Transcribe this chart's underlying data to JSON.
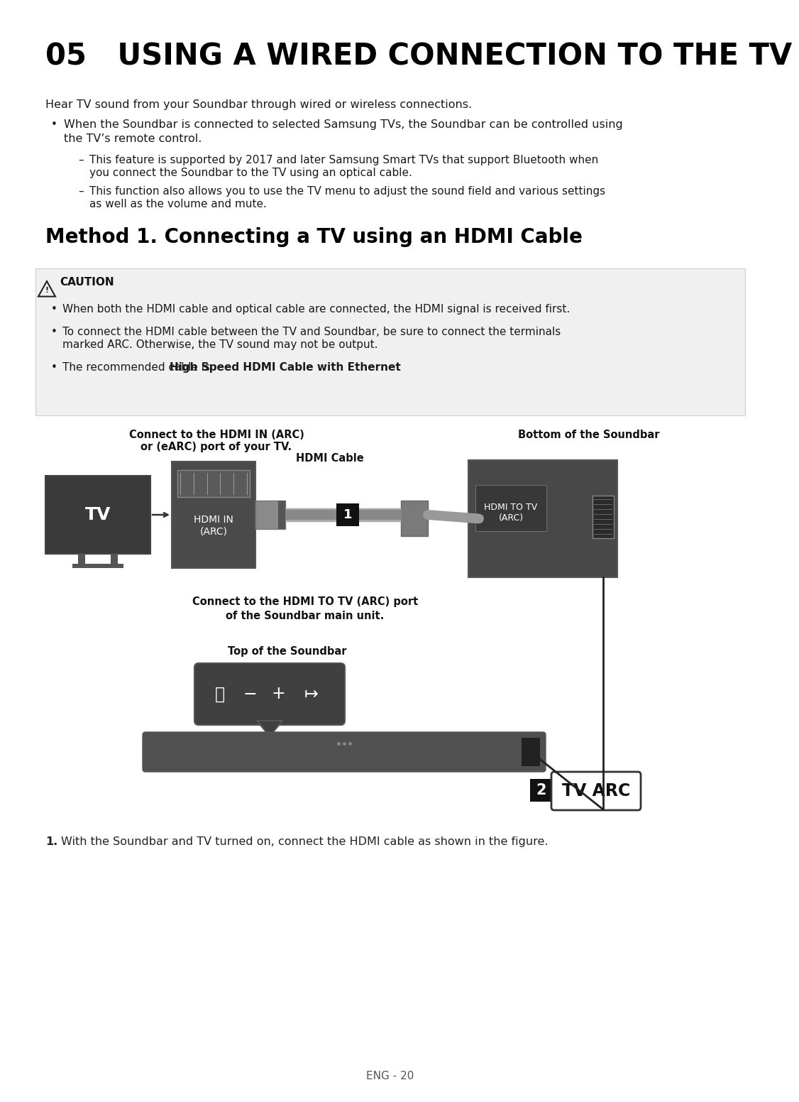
{
  "title": "05   USING A WIRED CONNECTION TO THE TV",
  "bg_color": "#ffffff",
  "title_color": "#000000",
  "intro_text": "Hear TV sound from your Soundbar through wired or wireless connections.",
  "bullet1_line1": "When the Soundbar is connected to selected Samsung TVs, the Soundbar can be controlled using",
  "bullet1_line2": "the TV’s remote control.",
  "sub1_line1": "This feature is supported by 2017 and later Samsung Smart TVs that support Bluetooth when",
  "sub1_line2": "you connect the Soundbar to the TV using an optical cable.",
  "sub2_line1": "This function also allows you to use the TV menu to adjust the sound field and various settings",
  "sub2_line2": "as well as the volume and mute.",
  "method_title": "Method 1. Connecting a TV using an HDMI Cable",
  "caution_header": "CAUTION",
  "caution1": "When both the HDMI cable and optical cable are connected, the HDMI signal is received first.",
  "caution2_line1": "To connect the HDMI cable between the TV and Soundbar, be sure to connect the terminals",
  "caution2_line2": "marked ARC. Otherwise, the TV sound may not be output.",
  "caution3_plain": "The recommended cable is ",
  "caution3_bold": "High Speed HDMI Cable with Ethernet",
  "caution3_end": ".",
  "label_arc_line1": "Connect to the HDMI IN (ARC)",
  "label_arc_line2": "or (eARC) port of your TV.",
  "label_hdmi": "HDMI Cable",
  "label_bottom": "Bottom of the Soundbar",
  "label_connect_line1": "Connect to the HDMI TO TV (ARC) port",
  "label_connect_line2": "of the Soundbar main unit.",
  "label_top_soundbar": "Top of the Soundbar",
  "tv_label": "TV",
  "hdmi_in_label": "HDMI IN\n(ARC)",
  "hdmi_to_tv_label": "HDMI TO TV\n(ARC)",
  "step1_text": "With the Soundbar and TV turned on, connect the HDMI cable as shown in the figure.",
  "footer": "ENG - 20",
  "caution_bg": "#f0f0f0",
  "tv_arc_label": "TV ARC"
}
